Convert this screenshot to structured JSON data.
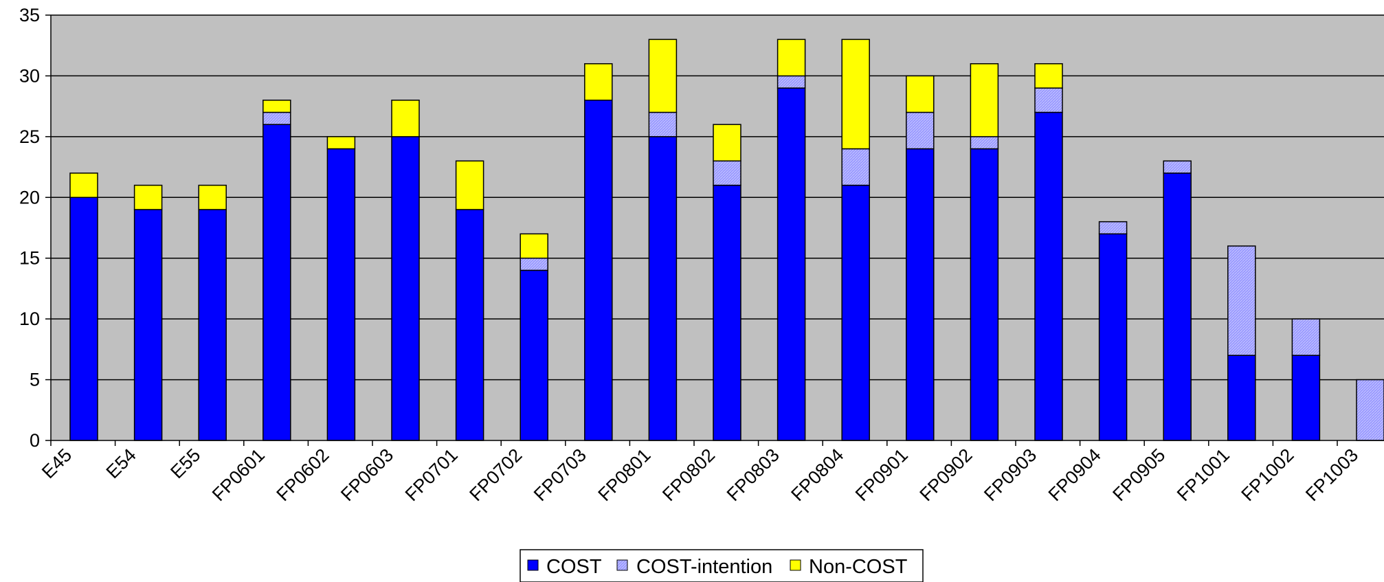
{
  "chart_data": {
    "type": "bar",
    "stacked": true,
    "title": "",
    "xlabel": "",
    "ylabel": "",
    "ylim": [
      0,
      35
    ],
    "yticks": [
      0,
      5,
      10,
      15,
      20,
      25,
      30,
      35
    ],
    "grid": "horizontal",
    "legend_position": "bottom",
    "plot_background": "#c0c0c0",
    "categories": [
      "E45",
      "E54",
      "E55",
      "FP0601",
      "FP0602",
      "FP0603",
      "FP0701",
      "FP0702",
      "FP0703",
      "FP0801",
      "FP0802",
      "FP0803",
      "FP0804",
      "FP0901",
      "FP0902",
      "FP0903",
      "FP0904",
      "FP0905",
      "FP1001",
      "FP1002",
      "FP1003"
    ],
    "series": [
      {
        "name": "COST",
        "color": "#0000ff",
        "pattern": "solid",
        "values": [
          20,
          19,
          19,
          26,
          24,
          25,
          19,
          14,
          28,
          25,
          21,
          29,
          21,
          24,
          24,
          27,
          17,
          22,
          7,
          7,
          0
        ]
      },
      {
        "name": "COST-intention",
        "color": "#9999ff",
        "pattern": "hatched",
        "values": [
          0,
          0,
          0,
          1,
          0,
          0,
          0,
          1,
          0,
          2,
          2,
          1,
          3,
          3,
          1,
          2,
          1,
          1,
          9,
          3,
          5
        ]
      },
      {
        "name": "Non-COST",
        "color": "#ffff00",
        "pattern": "solid",
        "values": [
          2,
          2,
          2,
          1,
          1,
          3,
          4,
          2,
          3,
          6,
          3,
          3,
          9,
          3,
          6,
          2,
          0,
          0,
          0,
          0,
          0
        ]
      }
    ]
  }
}
